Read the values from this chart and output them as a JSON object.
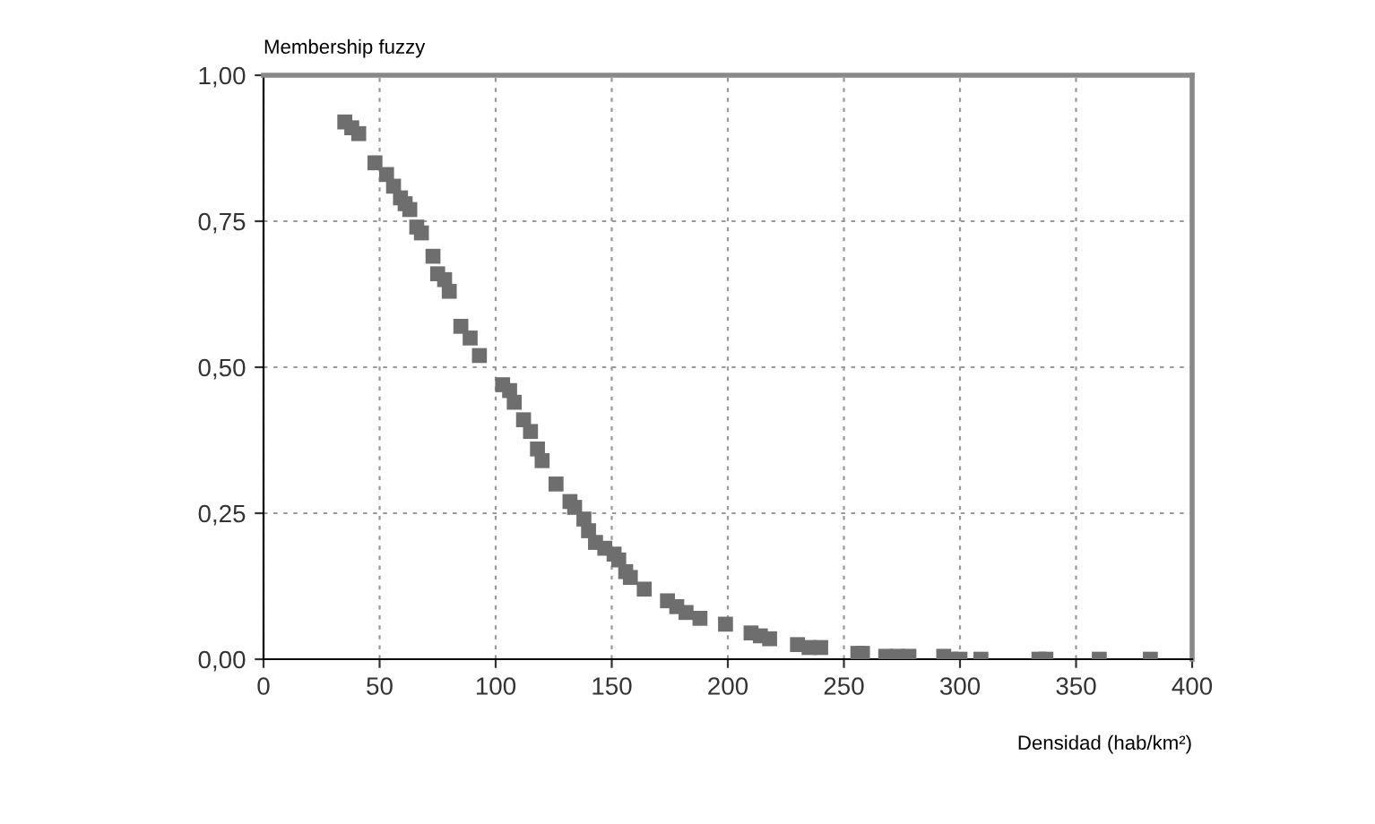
{
  "chart_data": {
    "type": "scatter",
    "ylabel": "Membership fuzzy",
    "xlabel": "Densidad (hab/km²)",
    "x": [
      35,
      38,
      41,
      48,
      53,
      56,
      59,
      61,
      63,
      66,
      68,
      73,
      75,
      78,
      80,
      85,
      89,
      93,
      103,
      106,
      108,
      112,
      115,
      118,
      120,
      126,
      132,
      134,
      138,
      140,
      143,
      147,
      151,
      153,
      156,
      158,
      164,
      174,
      178,
      182,
      188,
      199,
      210,
      214,
      218,
      230,
      235,
      240,
      256,
      258,
      268,
      273,
      278,
      293,
      296,
      300,
      309,
      334,
      337,
      360,
      382
    ],
    "series": [
      {
        "color": "#6e6e6e",
        "values": [
          0.92,
          0.91,
          0.9,
          0.85,
          0.83,
          0.81,
          0.79,
          0.78,
          0.77,
          0.74,
          0.73,
          0.69,
          0.66,
          0.65,
          0.63,
          0.57,
          0.55,
          0.52,
          0.47,
          0.46,
          0.44,
          0.41,
          0.39,
          0.36,
          0.34,
          0.3,
          0.27,
          0.26,
          0.24,
          0.22,
          0.2,
          0.19,
          0.18,
          0.17,
          0.15,
          0.14,
          0.12,
          0.1,
          0.09,
          0.08,
          0.07,
          0.06,
          0.045,
          0.04,
          0.035,
          0.025,
          0.02,
          0.02,
          0.01,
          0.01,
          0.005,
          0.005,
          0.005,
          0.005,
          0,
          0,
          0,
          0,
          0,
          0,
          0
        ]
      }
    ],
    "xlim": [
      0,
      400
    ],
    "xticks": [
      0,
      50,
      100,
      150,
      200,
      250,
      300,
      350,
      400
    ],
    "ylim": [
      0,
      1
    ],
    "yticks": [
      {
        "value": 0,
        "label": "0,00"
      },
      {
        "value": 0.25,
        "label": "0,25"
      },
      {
        "value": 0.5,
        "label": "0,50"
      },
      {
        "value": 0.75,
        "label": "0,75"
      },
      {
        "value": 1,
        "label": "1,00"
      }
    ],
    "grid": true,
    "marker": "square",
    "legend": false
  }
}
